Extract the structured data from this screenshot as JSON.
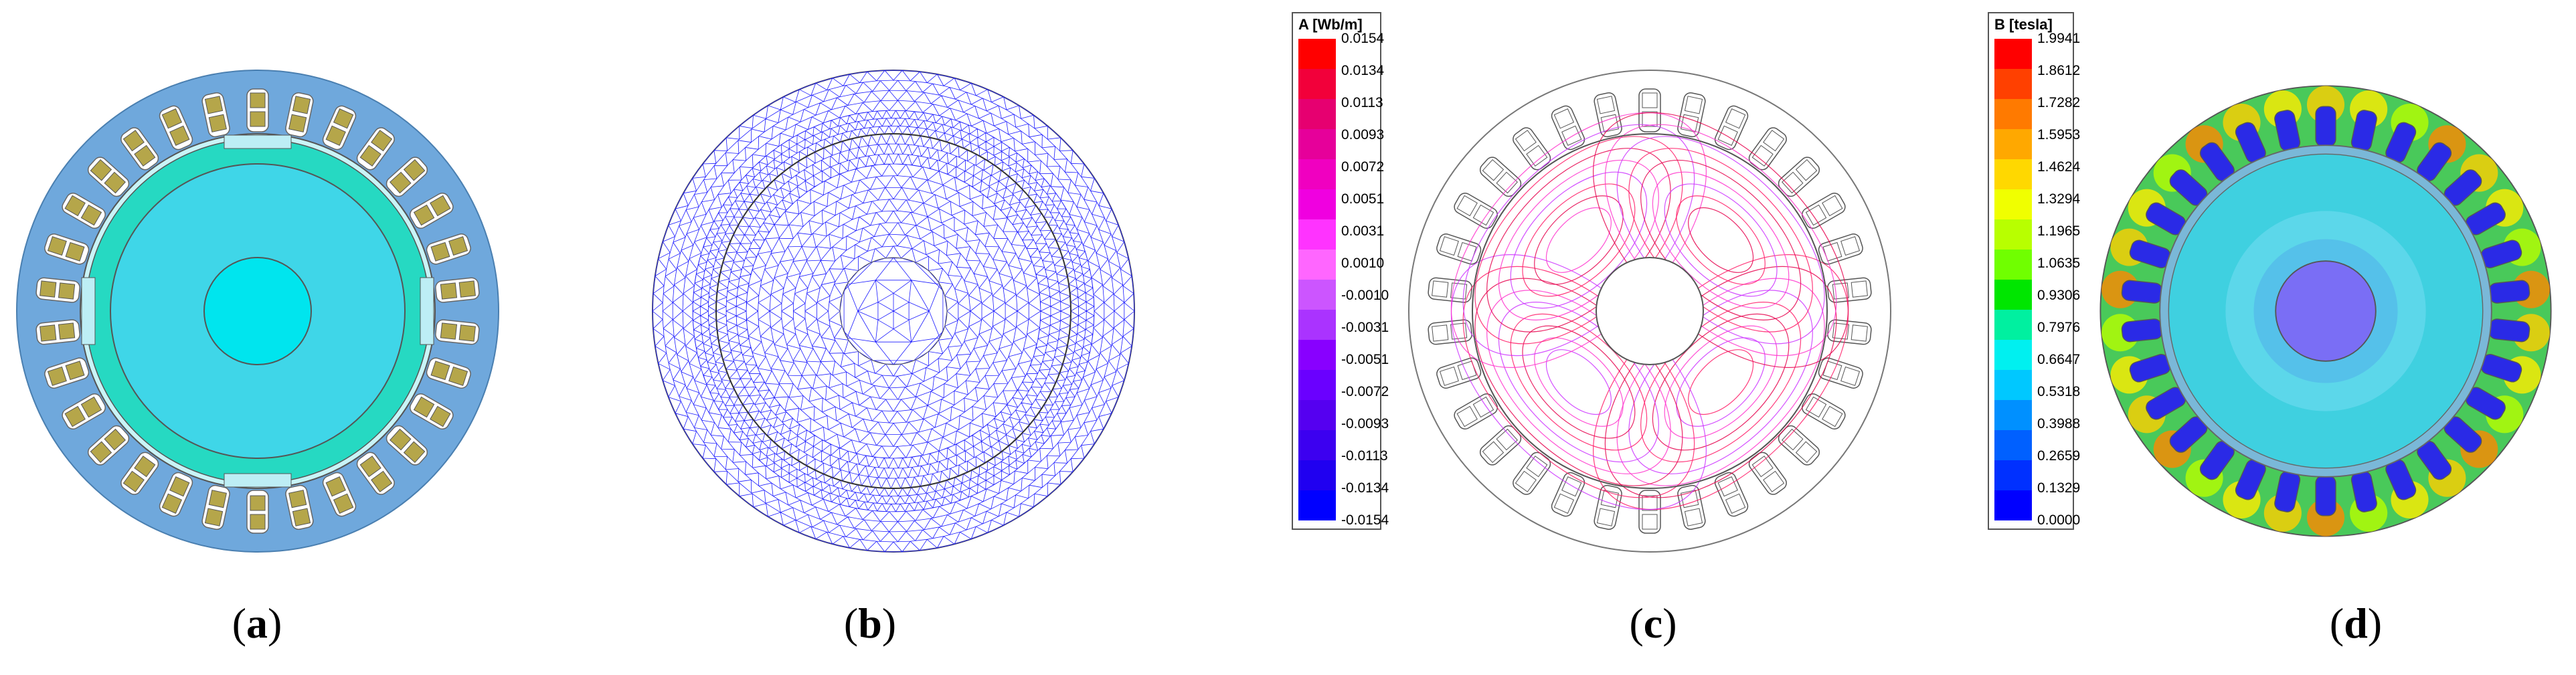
{
  "panels": [
    {
      "id": "a",
      "caption": "a"
    },
    {
      "id": "b",
      "caption": "b"
    },
    {
      "id": "c",
      "caption": "c"
    },
    {
      "id": "d",
      "caption": "d"
    }
  ],
  "legend_c": {
    "title": "A [Wb/m]",
    "labels": [
      "0.0154",
      "0.0134",
      "0.0113",
      "0.0093",
      "0.0072",
      "0.0051",
      "0.0031",
      "0.0010",
      "-0.0010",
      "-0.0031",
      "-0.0051",
      "-0.0072",
      "-0.0093",
      "-0.0113",
      "-0.0134",
      "-0.0154"
    ],
    "colors": [
      "#ff0000",
      "#f2003a",
      "#e60070",
      "#e6009a",
      "#f000c0",
      "#f000e0",
      "#ff33ff",
      "#ff66ff",
      "#cc55ff",
      "#aa33ff",
      "#8800ff",
      "#6a00ff",
      "#5500f0",
      "#3c00f0",
      "#2000f0",
      "#0000ff"
    ]
  },
  "legend_d": {
    "title": "B [tesla]",
    "labels": [
      "1.9941",
      "1.8612",
      "1.7282",
      "1.5953",
      "1.4624",
      "1.3294",
      "1.1965",
      "1.0635",
      "0.9306",
      "0.7976",
      "0.6647",
      "0.5318",
      "0.3988",
      "0.2659",
      "0.1329",
      "0.0000"
    ],
    "colors": [
      "#ff0000",
      "#ff4000",
      "#ff7a00",
      "#ffa800",
      "#ffd800",
      "#f0ff00",
      "#b8ff00",
      "#70ff00",
      "#00e600",
      "#00f0a0",
      "#00f0f0",
      "#00c8ff",
      "#0090ff",
      "#0060ff",
      "#0030ff",
      "#0000ff"
    ]
  },
  "colors": {
    "stator_a": "#6fa8dc",
    "rotor_a": "#3fd6e8",
    "shaft_a": "#00e5ee",
    "ring_a": "#26d9c2",
    "coil_a": "#b5a64a",
    "mesh": "#1a1aff",
    "field_bg": "#3fd0e0",
    "stator_d": "#49c95a"
  }
}
